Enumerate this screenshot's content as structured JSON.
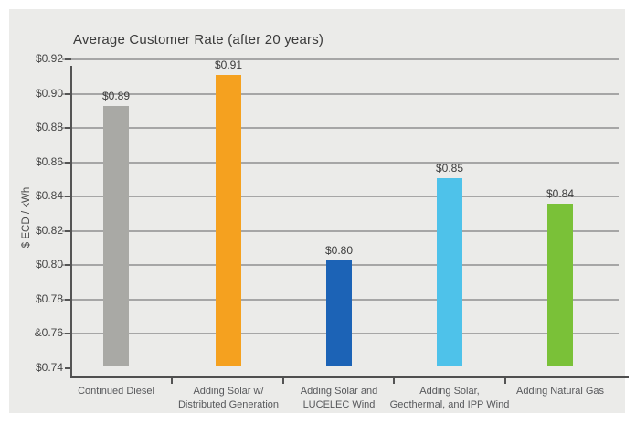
{
  "window": {
    "background_color": "#ffffff",
    "panel_background_color": "#ebebe9"
  },
  "chart_data": {
    "type": "bar",
    "title": "Average Customer Rate (after 20 years)",
    "xlabel": "",
    "ylabel": "$ ECD / kWh",
    "ylim": [
      0.74,
      0.92
    ],
    "ytick_step": 0.02,
    "ytick_labels": [
      "$0.74",
      "&0.76",
      "$0.78",
      "$0.80",
      "$0.82",
      "$0.84",
      "$0.86",
      "$0.88",
      "$0.90",
      "$0.92"
    ],
    "grid": true,
    "legend": false,
    "categories": [
      "Continued Diesel",
      "Adding Solar w/ Distributed Generation",
      "Adding Solar and LUCELEC Wind",
      "Adding Solar, Geothermal, and IPP Wind",
      "Adding Natural Gas"
    ],
    "category_lines": [
      [
        "Continued Diesel"
      ],
      [
        "Adding Solar w/",
        "Distributed Generation"
      ],
      [
        "Adding Solar and",
        "LUCELEC Wind"
      ],
      [
        "Adding Solar,",
        "Geothermal, and IPP Wind"
      ],
      [
        "Adding Natural Gas"
      ]
    ],
    "values": [
      0.89,
      0.91,
      0.8,
      0.85,
      0.84
    ],
    "value_labels": [
      "$0.89",
      "$0.91",
      "$0.80",
      "$0.85",
      "$0.84"
    ],
    "bar_render_values": [
      0.893,
      0.911,
      0.803,
      0.851,
      0.836
    ],
    "bar_colors": [
      "#a9a9a5",
      "#f5a11f",
      "#1c63b6",
      "#4ec2ea",
      "#7ac138"
    ],
    "style_colors": {
      "axis": "#545454",
      "gridline": "#a6a6a6",
      "title_text": "#3a3a3a",
      "tick_text": "#454545",
      "category_text": "#57585b",
      "value_text": "#3c3c3c"
    }
  }
}
